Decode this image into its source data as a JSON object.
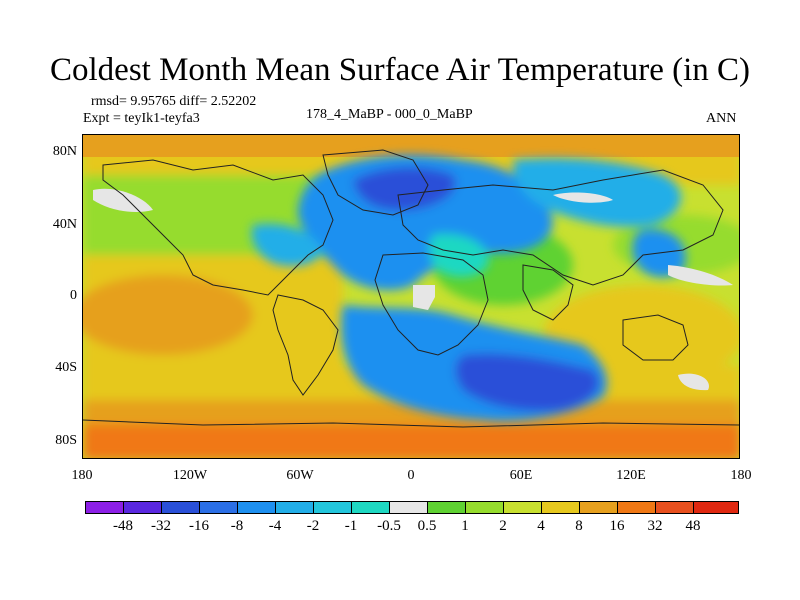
{
  "title": "Coldest Month Mean Surface Air Temperature (in C)",
  "stats_line": "rmsd= 9.95765 diff= 2.52202",
  "experiment": "Expt = teyIk1-teyfa3",
  "period": "178_4_MaBP - 000_0_MaBP",
  "season": "ANN",
  "y_axis_labels": [
    "80N",
    "40N",
    "0",
    "40S",
    "80S"
  ],
  "x_axis_labels": [
    "180",
    "120W",
    "60W",
    "0",
    "60E",
    "120E",
    "180"
  ],
  "colorbar": {
    "labels": [
      "-48",
      "-32",
      "-16",
      "-8",
      "-4",
      "-2",
      "-1",
      "-0.5",
      "0.5",
      "1",
      "2",
      "4",
      "8",
      "16",
      "32",
      "48"
    ],
    "colors": [
      "#8c1fe6",
      "#5a28e0",
      "#2a50d8",
      "#2b6fe6",
      "#1e90f0",
      "#22aee8",
      "#23c6dc",
      "#1ed8c2",
      "#e6e6e6",
      "#5fd232",
      "#96dc2d",
      "#c8e030",
      "#e6c81e",
      "#e6a01e",
      "#f07814",
      "#e8501e",
      "#e02810"
    ]
  }
}
